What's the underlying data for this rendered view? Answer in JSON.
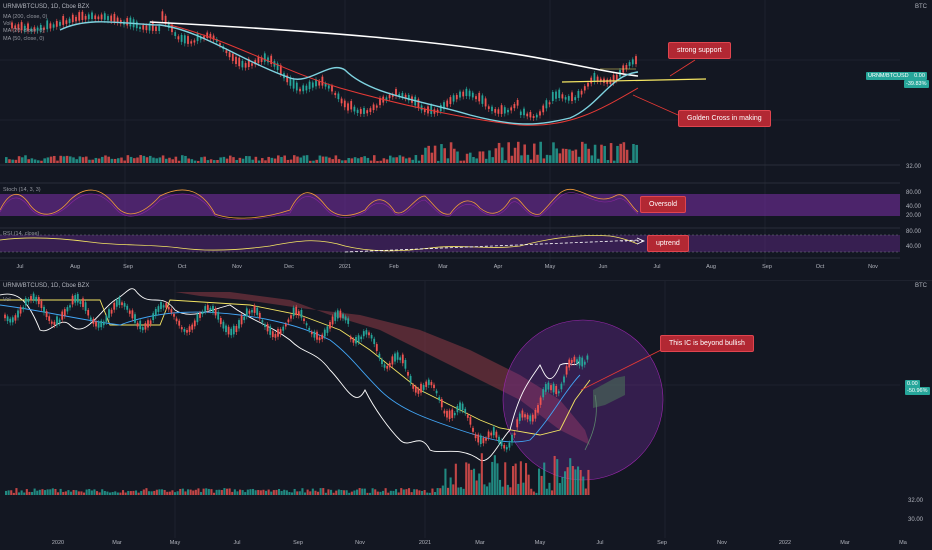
{
  "top_chart": {
    "symbol_line": "URNM/BTCUSD, 1D, Cboe BZX",
    "currency": "BTC",
    "ma_lines": [
      "MA (200, close, 0)",
      "Vol",
      "MA (20, close, 0)",
      "MA (50, close, 0)"
    ],
    "price_tag_symbol": "URNM/BTCUSD",
    "price_tag_value": "0.00",
    "price_tag_change": "-39.83%",
    "vol_axis": "32.00",
    "stoch_label": "Stoch (14, 3, 3)",
    "stoch_axis": [
      "80.00",
      "40.00",
      "20.00"
    ],
    "rsi_label": "RSI (14, close)",
    "rsi_axis": [
      "80.00",
      "40.00"
    ],
    "x_labels": [
      "Jul",
      "Aug",
      "Sep",
      "Oct",
      "Nov",
      "Dec",
      "2021",
      "Feb",
      "Mar",
      "Apr",
      "May",
      "Jun",
      "Jul",
      "Aug",
      "Sep",
      "Oct",
      "Nov"
    ]
  },
  "annotations": {
    "support": "strong support",
    "golden": "Golden Cross in making",
    "oversold": "Oversold",
    "uptrend": "uptrend",
    "bullish": "This IC is beyond bullish"
  },
  "bottom_chart": {
    "symbol_line": "URNM/BTCUSD, 1D, Cboe BZX",
    "vol_label": "Vol",
    "currency": "BTC",
    "price_tag_value": "0.00",
    "price_tag_change": "-50.96%",
    "right_axis": [
      "32.00",
      "30.00"
    ],
    "x_labels": [
      "2020",
      "Mar",
      "May",
      "Jul",
      "Sep",
      "Nov",
      "2021",
      "Mar",
      "May",
      "Jul",
      "Sep",
      "Nov",
      "2022",
      "Mar",
      "Ma"
    ]
  },
  "colors": {
    "background": "#131722",
    "up": "#26a69a",
    "down": "#ef5350",
    "ma200": "#ffffff",
    "ma50": "#e53935",
    "ma20": "#7fd3e0",
    "annotation": "#b22833",
    "band": "#7b2fa8",
    "price_tag": "#26a69a"
  }
}
